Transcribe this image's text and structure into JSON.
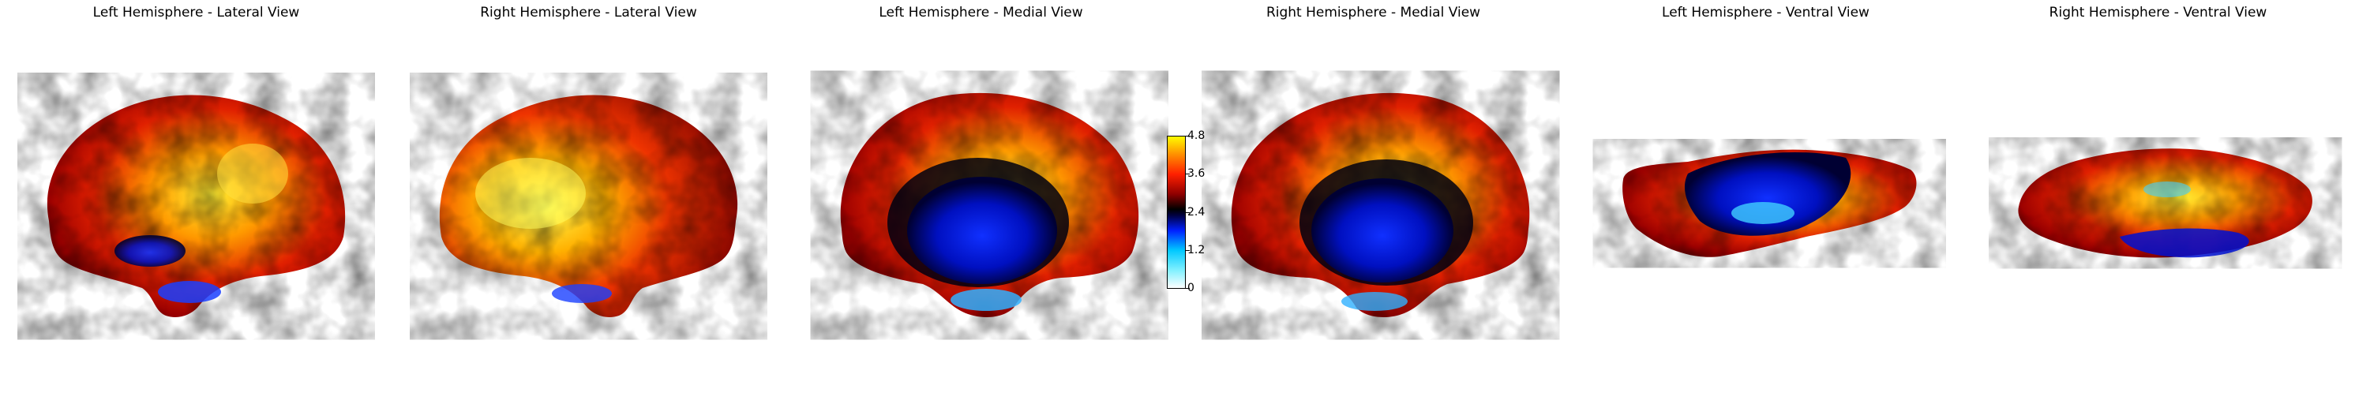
{
  "panels": [
    {
      "title": "Left Hemisphere - Lateral View"
    },
    {
      "title": "Right Hemisphere - Lateral View"
    },
    {
      "title": "Left Hemisphere - Medial View"
    },
    {
      "title": "Right Hemisphere - Medial View"
    },
    {
      "title": "Left Hemisphere - Ventral View"
    },
    {
      "title": "Right Hemisphere - Ventral View"
    }
  ],
  "colorbar": {
    "min": 0,
    "max": 4.8,
    "ticks": [
      "4.8",
      "3.6",
      "2.4",
      "1.2",
      "0"
    ],
    "colormap": "cold-hot",
    "colors": [
      "#ffffff",
      "#00e5ff",
      "#0000ff",
      "#000022",
      "#000000",
      "#8b0000",
      "#ff2200",
      "#ff8800",
      "#ffff00"
    ]
  }
}
